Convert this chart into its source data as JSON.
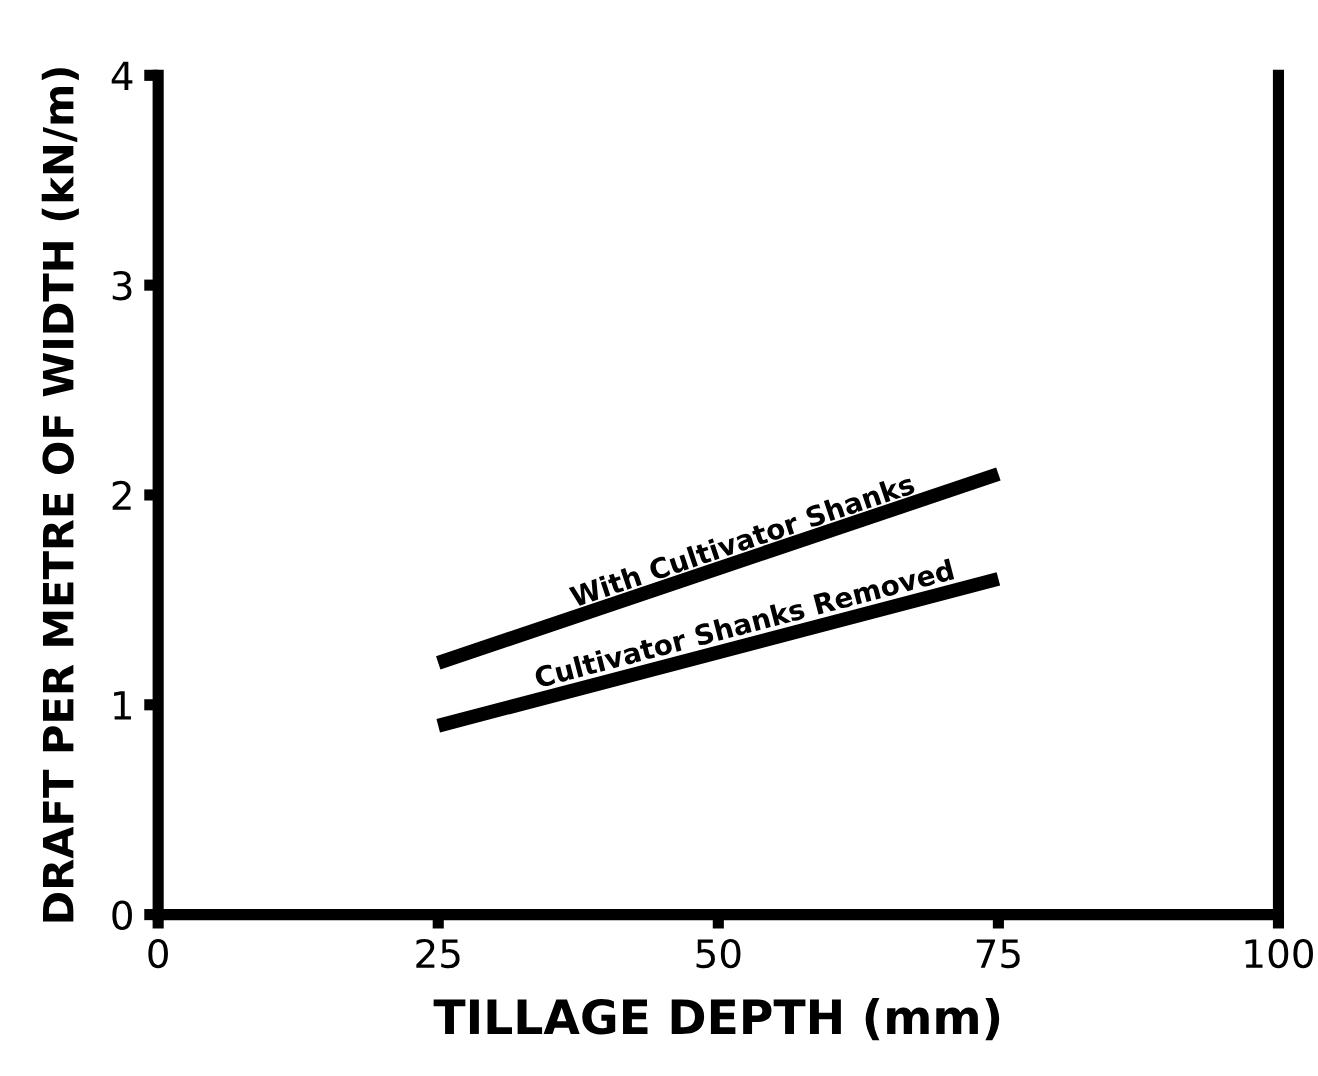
{
  "chart_data": {
    "type": "line",
    "xlabel": "TILLAGE DEPTH (mm)",
    "ylabel": "DRAFT PER METRE OF WIDTH (kN/m)",
    "x": [
      25,
      75
    ],
    "series": [
      {
        "name": "With Cultivator Shanks",
        "color": "#000000",
        "values": [
          1.2,
          2.1
        ]
      },
      {
        "name": "Cultivator Shanks Removed",
        "color": "#000000",
        "values": [
          0.9,
          1.6
        ]
      }
    ],
    "xlim": [
      0,
      100
    ],
    "xticks": [
      0,
      25,
      50,
      75,
      100
    ],
    "ylim": [
      0,
      4
    ],
    "yticks": [
      0,
      1,
      2,
      3,
      4
    ],
    "grid": false,
    "legend": false,
    "marker": "none",
    "line_style": "solid"
  }
}
